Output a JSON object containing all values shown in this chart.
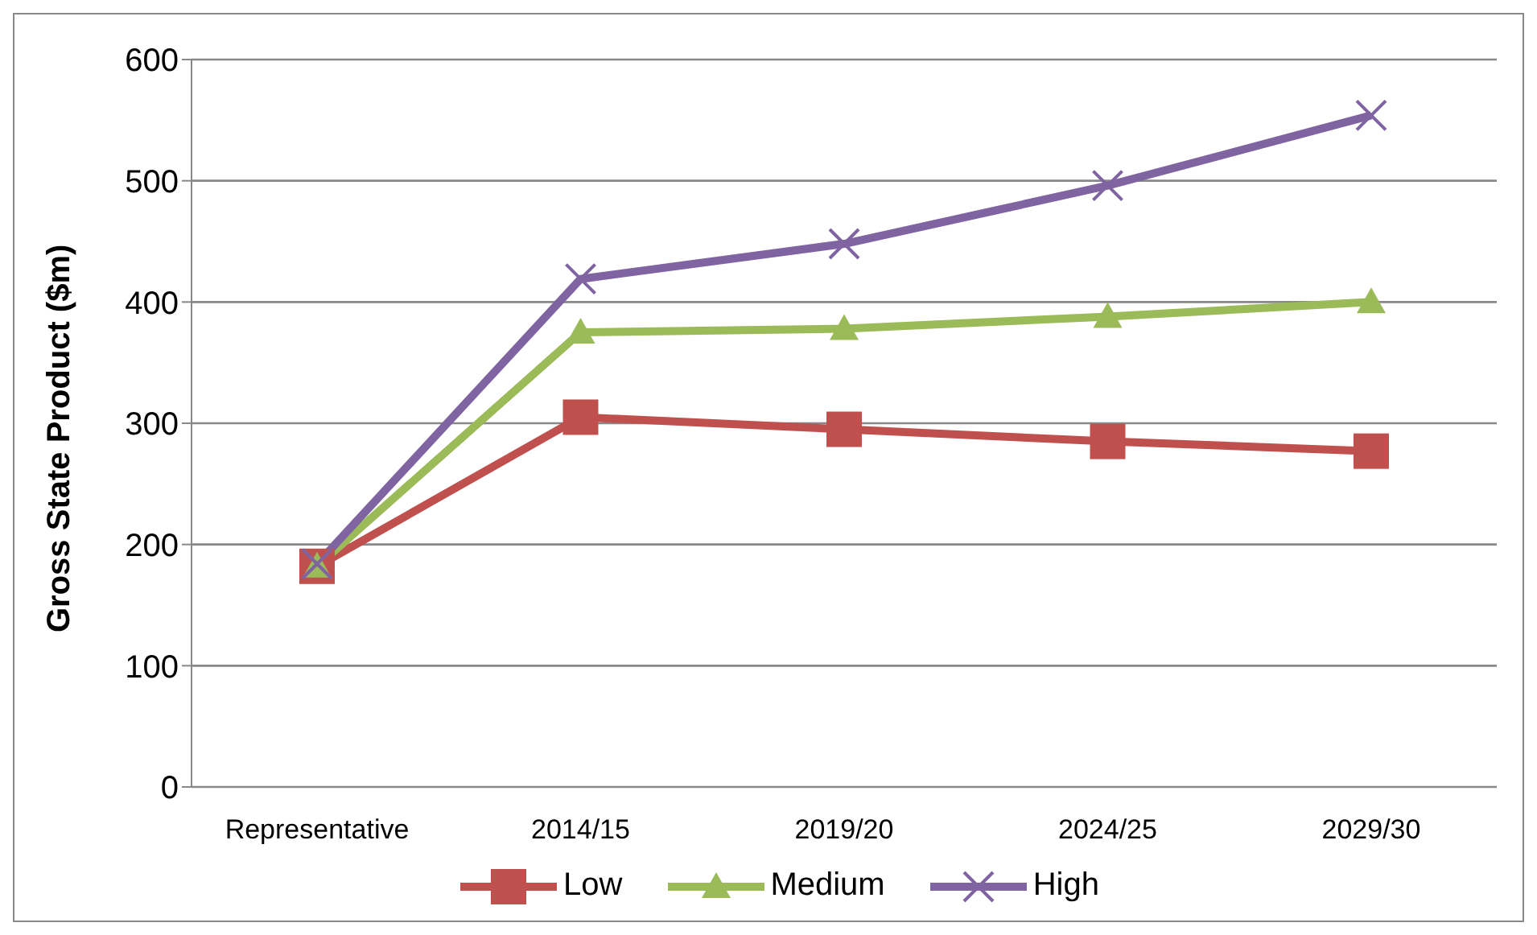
{
  "chart_data": {
    "type": "line",
    "ylabel": "Gross State Product ($m)",
    "categories": [
      "Representative",
      "2014/15",
      "2019/20",
      "2024/25",
      "2029/30"
    ],
    "series": [
      {
        "name": "Low",
        "color": "#c0504d",
        "marker": "square",
        "values": [
          182,
          305,
          295,
          285,
          277
        ]
      },
      {
        "name": "Medium",
        "color": "#9bbb59",
        "marker": "triangle",
        "values": [
          182,
          375,
          378,
          388,
          400
        ]
      },
      {
        "name": "High",
        "color": "#8064a2",
        "marker": "cross",
        "values": [
          184,
          419,
          448,
          496,
          554
        ]
      }
    ],
    "ylim": [
      0,
      600
    ],
    "yticks": [
      0,
      100,
      200,
      300,
      400,
      500,
      600
    ],
    "grid": "y",
    "legend": "bottom"
  }
}
